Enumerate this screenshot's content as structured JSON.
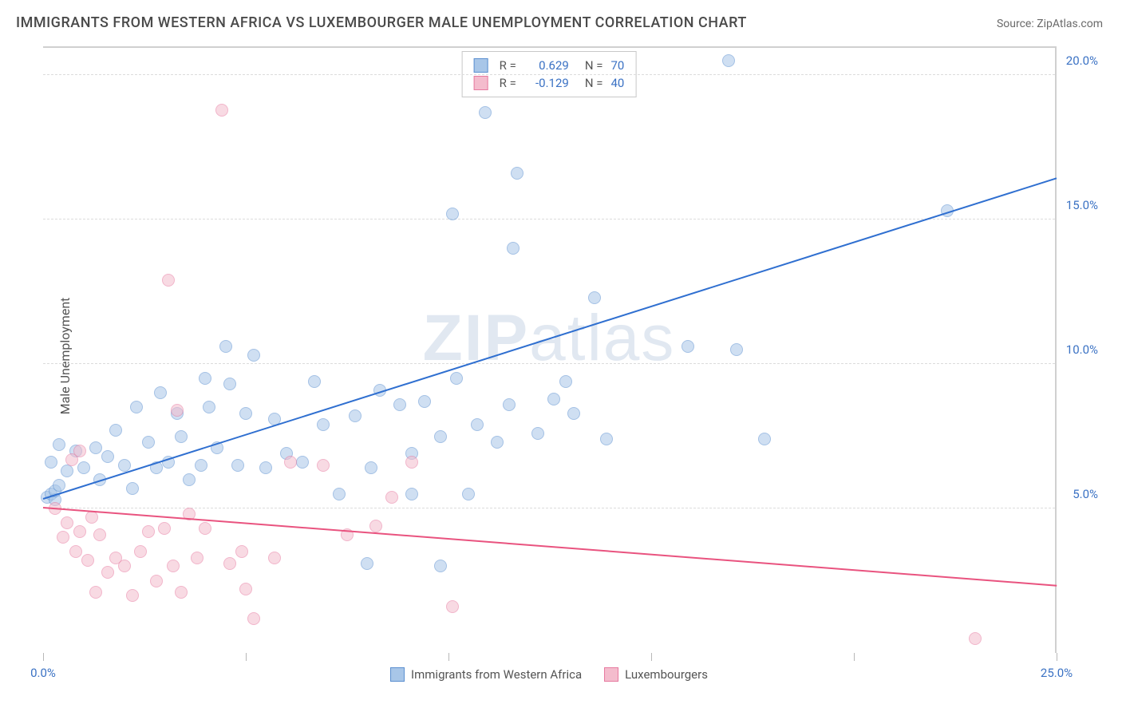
{
  "title": "IMMIGRANTS FROM WESTERN AFRICA VS LUXEMBOURGER MALE UNEMPLOYMENT CORRELATION CHART",
  "source": "Source: ZipAtlas.com",
  "y_axis_label": "Male Unemployment",
  "watermark_bold": "ZIP",
  "watermark_rest": "atlas",
  "chart": {
    "type": "scatter",
    "xlim": [
      0,
      25
    ],
    "ylim": [
      0,
      21
    ],
    "x_ticks": [
      0,
      5,
      10,
      15,
      20,
      25
    ],
    "x_tick_labels": [
      "0.0%",
      "",
      "",
      "",
      "",
      "25.0%"
    ],
    "y_ticks": [
      5,
      10,
      15,
      20
    ],
    "y_tick_labels": [
      "5.0%",
      "10.0%",
      "15.0%",
      "20.0%"
    ],
    "grid_color": "#dcdcdc",
    "background": "#ffffff",
    "plot_border_color": "#d0d0d0",
    "tick_label_color": "#3b72c4",
    "axis_label_color": "#555555",
    "point_radius": 8,
    "point_opacity": 0.55,
    "series": [
      {
        "name": "Immigrants from Western Africa",
        "color_fill": "#a8c6e8",
        "color_stroke": "#5b8fd0",
        "R": "0.629",
        "N": "70",
        "trend": {
          "x1": 0,
          "y1": 5.3,
          "x2": 25,
          "y2": 16.4,
          "color": "#2f6fd0",
          "width": 2
        },
        "points": [
          [
            0.1,
            5.4
          ],
          [
            0.2,
            5.5
          ],
          [
            0.3,
            5.3
          ],
          [
            0.3,
            5.6
          ],
          [
            0.4,
            5.8
          ],
          [
            0.2,
            6.6
          ],
          [
            0.4,
            7.2
          ],
          [
            0.6,
            6.3
          ],
          [
            0.8,
            7.0
          ],
          [
            1.0,
            6.4
          ],
          [
            1.3,
            7.1
          ],
          [
            1.4,
            6.0
          ],
          [
            1.6,
            6.8
          ],
          [
            1.8,
            7.7
          ],
          [
            2.0,
            6.5
          ],
          [
            2.2,
            5.7
          ],
          [
            2.3,
            8.5
          ],
          [
            2.6,
            7.3
          ],
          [
            2.8,
            6.4
          ],
          [
            2.9,
            9.0
          ],
          [
            3.1,
            6.6
          ],
          [
            3.3,
            8.3
          ],
          [
            3.4,
            7.5
          ],
          [
            3.6,
            6.0
          ],
          [
            3.9,
            6.5
          ],
          [
            4.0,
            9.5
          ],
          [
            4.1,
            8.5
          ],
          [
            4.3,
            7.1
          ],
          [
            4.5,
            10.6
          ],
          [
            4.6,
            9.3
          ],
          [
            4.8,
            6.5
          ],
          [
            5.0,
            8.3
          ],
          [
            5.2,
            10.3
          ],
          [
            5.5,
            6.4
          ],
          [
            5.7,
            8.1
          ],
          [
            6.0,
            6.9
          ],
          [
            6.4,
            6.6
          ],
          [
            6.7,
            9.4
          ],
          [
            6.9,
            7.9
          ],
          [
            7.3,
            5.5
          ],
          [
            7.7,
            8.2
          ],
          [
            8.1,
            6.4
          ],
          [
            8.3,
            9.1
          ],
          [
            8.8,
            8.6
          ],
          [
            9.1,
            6.9
          ],
          [
            9.1,
            5.5
          ],
          [
            9.4,
            8.7
          ],
          [
            9.8,
            7.5
          ],
          [
            10.1,
            15.2
          ],
          [
            10.2,
            9.5
          ],
          [
            10.5,
            5.5
          ],
          [
            10.7,
            7.9
          ],
          [
            10.9,
            18.7
          ],
          [
            11.2,
            7.3
          ],
          [
            11.5,
            8.6
          ],
          [
            11.6,
            14.0
          ],
          [
            11.7,
            16.6
          ],
          [
            12.2,
            7.6
          ],
          [
            12.6,
            8.8
          ],
          [
            12.9,
            9.4
          ],
          [
            13.1,
            8.3
          ],
          [
            13.6,
            12.3
          ],
          [
            13.9,
            7.4
          ],
          [
            15.9,
            10.6
          ],
          [
            16.9,
            20.5
          ],
          [
            17.1,
            10.5
          ],
          [
            17.8,
            7.4
          ],
          [
            22.3,
            15.3
          ],
          [
            9.8,
            3.0
          ],
          [
            8.0,
            3.1
          ]
        ]
      },
      {
        "name": "Luxembourgers",
        "color_fill": "#f4bccd",
        "color_stroke": "#e77aa0",
        "R": "-0.129",
        "N": "40",
        "trend": {
          "x1": 0,
          "y1": 5.0,
          "x2": 25,
          "y2": 2.3,
          "color": "#e9537f",
          "width": 2
        },
        "points": [
          [
            0.3,
            5.0
          ],
          [
            0.5,
            4.0
          ],
          [
            0.6,
            4.5
          ],
          [
            0.7,
            6.7
          ],
          [
            0.8,
            3.5
          ],
          [
            0.9,
            4.2
          ],
          [
            0.9,
            7.0
          ],
          [
            1.1,
            3.2
          ],
          [
            1.2,
            4.7
          ],
          [
            1.3,
            2.1
          ],
          [
            1.4,
            4.1
          ],
          [
            1.6,
            2.8
          ],
          [
            1.8,
            3.3
          ],
          [
            2.0,
            3.0
          ],
          [
            2.2,
            2.0
          ],
          [
            2.4,
            3.5
          ],
          [
            2.6,
            4.2
          ],
          [
            2.8,
            2.5
          ],
          [
            3.0,
            4.3
          ],
          [
            3.2,
            3.0
          ],
          [
            3.4,
            2.1
          ],
          [
            3.6,
            4.8
          ],
          [
            3.8,
            3.3
          ],
          [
            4.0,
            4.3
          ],
          [
            3.1,
            12.9
          ],
          [
            3.3,
            8.4
          ],
          [
            4.4,
            18.8
          ],
          [
            4.6,
            3.1
          ],
          [
            4.9,
            3.5
          ],
          [
            5.2,
            1.2
          ],
          [
            5.7,
            3.3
          ],
          [
            6.1,
            6.6
          ],
          [
            6.9,
            6.5
          ],
          [
            7.5,
            4.1
          ],
          [
            8.2,
            4.4
          ],
          [
            8.6,
            5.4
          ],
          [
            9.1,
            6.6
          ],
          [
            10.1,
            1.6
          ],
          [
            23.0,
            0.5
          ],
          [
            5.0,
            2.2
          ]
        ]
      }
    ]
  },
  "legend_labels": {
    "r": "R =",
    "n": "N ="
  }
}
